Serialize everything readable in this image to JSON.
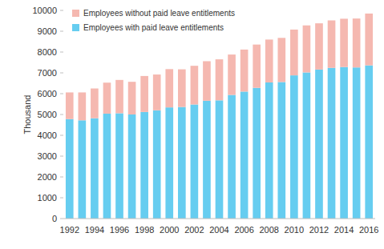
{
  "chart_data": {
    "type": "bar",
    "stacked": true,
    "y_label": "Thousand",
    "categories": [
      "1992",
      null,
      "1994",
      null,
      "1996",
      null,
      "1998",
      null,
      "2000",
      null,
      "2002",
      null,
      "2004",
      null,
      "2006",
      null,
      "2008",
      null,
      "2010",
      null,
      "2012",
      null,
      "2014",
      null,
      "2016"
    ],
    "series": [
      {
        "name": "Employees with paid leave entitlements",
        "color": "#66cdf0",
        "values": [
          4780,
          4720,
          4820,
          5040,
          5060,
          5000,
          5120,
          5200,
          5340,
          5360,
          5480,
          5660,
          5680,
          5940,
          6100,
          6280,
          6540,
          6560,
          6880,
          7020,
          7160,
          7240,
          7280,
          7260,
          7360
        ]
      },
      {
        "name": "Employees without paid leave entitlements",
        "color": "#f5b8b0",
        "values": [
          1280,
          1340,
          1430,
          1490,
          1600,
          1570,
          1730,
          1720,
          1840,
          1810,
          1860,
          1900,
          1970,
          1940,
          2020,
          2080,
          2060,
          2120,
          2200,
          2260,
          2220,
          2280,
          2320,
          2350,
          2490
        ]
      }
    ],
    "ylim": [
      0,
      10000
    ],
    "yticks": [
      0,
      1000,
      2000,
      3000,
      4000,
      5000,
      6000,
      7000,
      8000,
      9000,
      10000
    ],
    "legend": "top-left",
    "grid": false
  }
}
